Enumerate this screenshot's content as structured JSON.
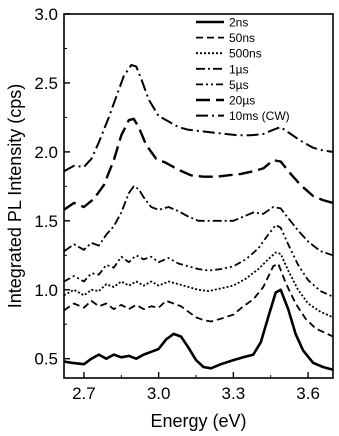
{
  "chart_data": {
    "type": "line",
    "title": "",
    "xlabel": "Energy (eV)",
    "ylabel": "Integrated PL Intensity (cps)",
    "xlim": [
      2.62,
      3.7
    ],
    "ylim": [
      0.36,
      3.0
    ],
    "x_ticks": [
      2.7,
      3.0,
      3.3,
      3.6
    ],
    "x_tick_labels": [
      "2.7",
      "3.0",
      "3.3",
      "3.6"
    ],
    "y_ticks": [
      0.5,
      1.0,
      1.5,
      2.0,
      2.5,
      3.0
    ],
    "y_tick_labels": [
      "0.5",
      "1.0",
      "1.5",
      "2.0",
      "2.5",
      "3.0"
    ],
    "grid": false,
    "legend_position": "top-right",
    "series": [
      {
        "name": "2ns",
        "dash": "solid",
        "width": 2.6,
        "points": [
          [
            2.62,
            0.48
          ],
          [
            2.65,
            0.47
          ],
          [
            2.7,
            0.46
          ],
          [
            2.73,
            0.5
          ],
          [
            2.76,
            0.53
          ],
          [
            2.79,
            0.5
          ],
          [
            2.82,
            0.53
          ],
          [
            2.85,
            0.51
          ],
          [
            2.88,
            0.52
          ],
          [
            2.91,
            0.5
          ],
          [
            2.94,
            0.53
          ],
          [
            2.97,
            0.55
          ],
          [
            3.0,
            0.57
          ],
          [
            3.03,
            0.64
          ],
          [
            3.06,
            0.68
          ],
          [
            3.09,
            0.66
          ],
          [
            3.12,
            0.58
          ],
          [
            3.15,
            0.49
          ],
          [
            3.18,
            0.44
          ],
          [
            3.21,
            0.43
          ],
          [
            3.25,
            0.46
          ],
          [
            3.3,
            0.49
          ],
          [
            3.34,
            0.51
          ],
          [
            3.38,
            0.53
          ],
          [
            3.41,
            0.62
          ],
          [
            3.44,
            0.8
          ],
          [
            3.47,
            0.98
          ],
          [
            3.49,
            1.0
          ],
          [
            3.52,
            0.86
          ],
          [
            3.55,
            0.68
          ],
          [
            3.58,
            0.56
          ],
          [
            3.62,
            0.47
          ],
          [
            3.66,
            0.44
          ],
          [
            3.7,
            0.42
          ]
        ]
      },
      {
        "name": "50ns",
        "dash": "7,4",
        "width": 1.8,
        "points": [
          [
            2.62,
            0.85
          ],
          [
            2.66,
            0.9
          ],
          [
            2.7,
            0.87
          ],
          [
            2.73,
            0.92
          ],
          [
            2.76,
            0.88
          ],
          [
            2.79,
            0.9
          ],
          [
            2.82,
            0.86
          ],
          [
            2.85,
            0.89
          ],
          [
            2.88,
            0.86
          ],
          [
            2.91,
            0.89
          ],
          [
            2.94,
            0.86
          ],
          [
            2.97,
            0.88
          ],
          [
            3.0,
            0.87
          ],
          [
            3.03,
            0.92
          ],
          [
            3.06,
            0.9
          ],
          [
            3.09,
            0.88
          ],
          [
            3.12,
            0.84
          ],
          [
            3.15,
            0.8
          ],
          [
            3.18,
            0.78
          ],
          [
            3.21,
            0.77
          ],
          [
            3.25,
            0.79
          ],
          [
            3.3,
            0.82
          ],
          [
            3.34,
            0.88
          ],
          [
            3.38,
            0.93
          ],
          [
            3.42,
            1.02
          ],
          [
            3.46,
            1.17
          ],
          [
            3.48,
            1.19
          ],
          [
            3.51,
            1.05
          ],
          [
            3.55,
            0.9
          ],
          [
            3.59,
            0.79
          ],
          [
            3.63,
            0.72
          ],
          [
            3.7,
            0.66
          ]
        ]
      },
      {
        "name": "500ns",
        "dash": "2,2",
        "width": 1.8,
        "points": [
          [
            2.62,
            0.96
          ],
          [
            2.66,
            1.0
          ],
          [
            2.7,
            0.96
          ],
          [
            2.73,
            1.0
          ],
          [
            2.76,
            0.99
          ],
          [
            2.79,
            1.04
          ],
          [
            2.82,
            1.02
          ],
          [
            2.85,
            1.06
          ],
          [
            2.88,
            1.03
          ],
          [
            2.91,
            1.06
          ],
          [
            2.94,
            1.03
          ],
          [
            2.97,
            1.06
          ],
          [
            3.0,
            1.03
          ],
          [
            3.04,
            1.06
          ],
          [
            3.08,
            1.04
          ],
          [
            3.12,
            1.02
          ],
          [
            3.16,
            1.0
          ],
          [
            3.2,
            0.99
          ],
          [
            3.25,
            1.01
          ],
          [
            3.3,
            1.03
          ],
          [
            3.35,
            1.08
          ],
          [
            3.4,
            1.15
          ],
          [
            3.44,
            1.22
          ],
          [
            3.47,
            1.27
          ],
          [
            3.49,
            1.26
          ],
          [
            3.52,
            1.14
          ],
          [
            3.56,
            1.0
          ],
          [
            3.6,
            0.9
          ],
          [
            3.65,
            0.84
          ],
          [
            3.7,
            0.8
          ]
        ]
      },
      {
        "name": "1µs",
        "dash": "9,3,2,3",
        "width": 1.8,
        "points": [
          [
            2.62,
            1.28
          ],
          [
            2.66,
            1.33
          ],
          [
            2.7,
            1.29
          ],
          [
            2.73,
            1.34
          ],
          [
            2.76,
            1.32
          ],
          [
            2.79,
            1.4
          ],
          [
            2.82,
            1.46
          ],
          [
            2.85,
            1.56
          ],
          [
            2.88,
            1.7
          ],
          [
            2.9,
            1.75
          ],
          [
            2.92,
            1.73
          ],
          [
            2.94,
            1.67
          ],
          [
            2.97,
            1.6
          ],
          [
            3.0,
            1.58
          ],
          [
            3.04,
            1.6
          ],
          [
            3.08,
            1.57
          ],
          [
            3.12,
            1.53
          ],
          [
            3.16,
            1.5
          ],
          [
            3.2,
            1.5
          ],
          [
            3.25,
            1.5
          ],
          [
            3.3,
            1.5
          ],
          [
            3.34,
            1.53
          ],
          [
            3.38,
            1.56
          ],
          [
            3.42,
            1.55
          ],
          [
            3.46,
            1.6
          ],
          [
            3.49,
            1.59
          ],
          [
            3.52,
            1.52
          ],
          [
            3.56,
            1.43
          ],
          [
            3.6,
            1.35
          ],
          [
            3.65,
            1.28
          ],
          [
            3.7,
            1.25
          ]
        ]
      },
      {
        "name": "5µs",
        "dash": "7,3,2,3,2,3",
        "width": 1.8,
        "points": [
          [
            2.62,
            1.06
          ],
          [
            2.66,
            1.1
          ],
          [
            2.7,
            1.06
          ],
          [
            2.73,
            1.12
          ],
          [
            2.76,
            1.11
          ],
          [
            2.79,
            1.18
          ],
          [
            2.82,
            1.16
          ],
          [
            2.85,
            1.24
          ],
          [
            2.88,
            1.2
          ],
          [
            2.91,
            1.25
          ],
          [
            2.94,
            1.22
          ],
          [
            2.97,
            1.24
          ],
          [
            3.0,
            1.2
          ],
          [
            3.04,
            1.23
          ],
          [
            3.08,
            1.19
          ],
          [
            3.12,
            1.17
          ],
          [
            3.16,
            1.15
          ],
          [
            3.2,
            1.14
          ],
          [
            3.25,
            1.15
          ],
          [
            3.3,
            1.17
          ],
          [
            3.35,
            1.22
          ],
          [
            3.4,
            1.3
          ],
          [
            3.44,
            1.4
          ],
          [
            3.47,
            1.47
          ],
          [
            3.49,
            1.45
          ],
          [
            3.52,
            1.33
          ],
          [
            3.56,
            1.18
          ],
          [
            3.6,
            1.07
          ],
          [
            3.65,
            0.99
          ],
          [
            3.7,
            0.95
          ]
        ]
      },
      {
        "name": "20µs",
        "dash": "14,6",
        "width": 2.4,
        "points": [
          [
            2.62,
            1.58
          ],
          [
            2.66,
            1.63
          ],
          [
            2.7,
            1.6
          ],
          [
            2.74,
            1.66
          ],
          [
            2.78,
            1.76
          ],
          [
            2.82,
            1.94
          ],
          [
            2.85,
            2.12
          ],
          [
            2.88,
            2.23
          ],
          [
            2.9,
            2.24
          ],
          [
            2.92,
            2.18
          ],
          [
            2.95,
            2.05
          ],
          [
            2.99,
            1.95
          ],
          [
            3.03,
            1.92
          ],
          [
            3.08,
            1.87
          ],
          [
            3.13,
            1.83
          ],
          [
            3.18,
            1.82
          ],
          [
            3.23,
            1.82
          ],
          [
            3.28,
            1.83
          ],
          [
            3.33,
            1.84
          ],
          [
            3.38,
            1.86
          ],
          [
            3.42,
            1.88
          ],
          [
            3.46,
            1.94
          ],
          [
            3.49,
            1.93
          ],
          [
            3.53,
            1.84
          ],
          [
            3.57,
            1.76
          ],
          [
            3.62,
            1.68
          ],
          [
            3.66,
            1.65
          ],
          [
            3.7,
            1.63
          ]
        ]
      },
      {
        "name": "10ms (CW)",
        "dash": "12,4,2,4",
        "width": 2.0,
        "points": [
          [
            2.62,
            1.86
          ],
          [
            2.66,
            1.9
          ],
          [
            2.7,
            1.89
          ],
          [
            2.73,
            1.95
          ],
          [
            2.76,
            2.07
          ],
          [
            2.8,
            2.25
          ],
          [
            2.83,
            2.4
          ],
          [
            2.86,
            2.55
          ],
          [
            2.89,
            2.63
          ],
          [
            2.91,
            2.62
          ],
          [
            2.93,
            2.53
          ],
          [
            2.96,
            2.38
          ],
          [
            3.0,
            2.26
          ],
          [
            3.04,
            2.22
          ],
          [
            3.08,
            2.18
          ],
          [
            3.12,
            2.16
          ],
          [
            3.17,
            2.15
          ],
          [
            3.22,
            2.14
          ],
          [
            3.27,
            2.13
          ],
          [
            3.32,
            2.12
          ],
          [
            3.37,
            2.12
          ],
          [
            3.42,
            2.13
          ],
          [
            3.46,
            2.16
          ],
          [
            3.49,
            2.18
          ],
          [
            3.53,
            2.13
          ],
          [
            3.57,
            2.08
          ],
          [
            3.62,
            2.03
          ],
          [
            3.66,
            2.01
          ],
          [
            3.7,
            2.0
          ]
        ]
      }
    ]
  }
}
